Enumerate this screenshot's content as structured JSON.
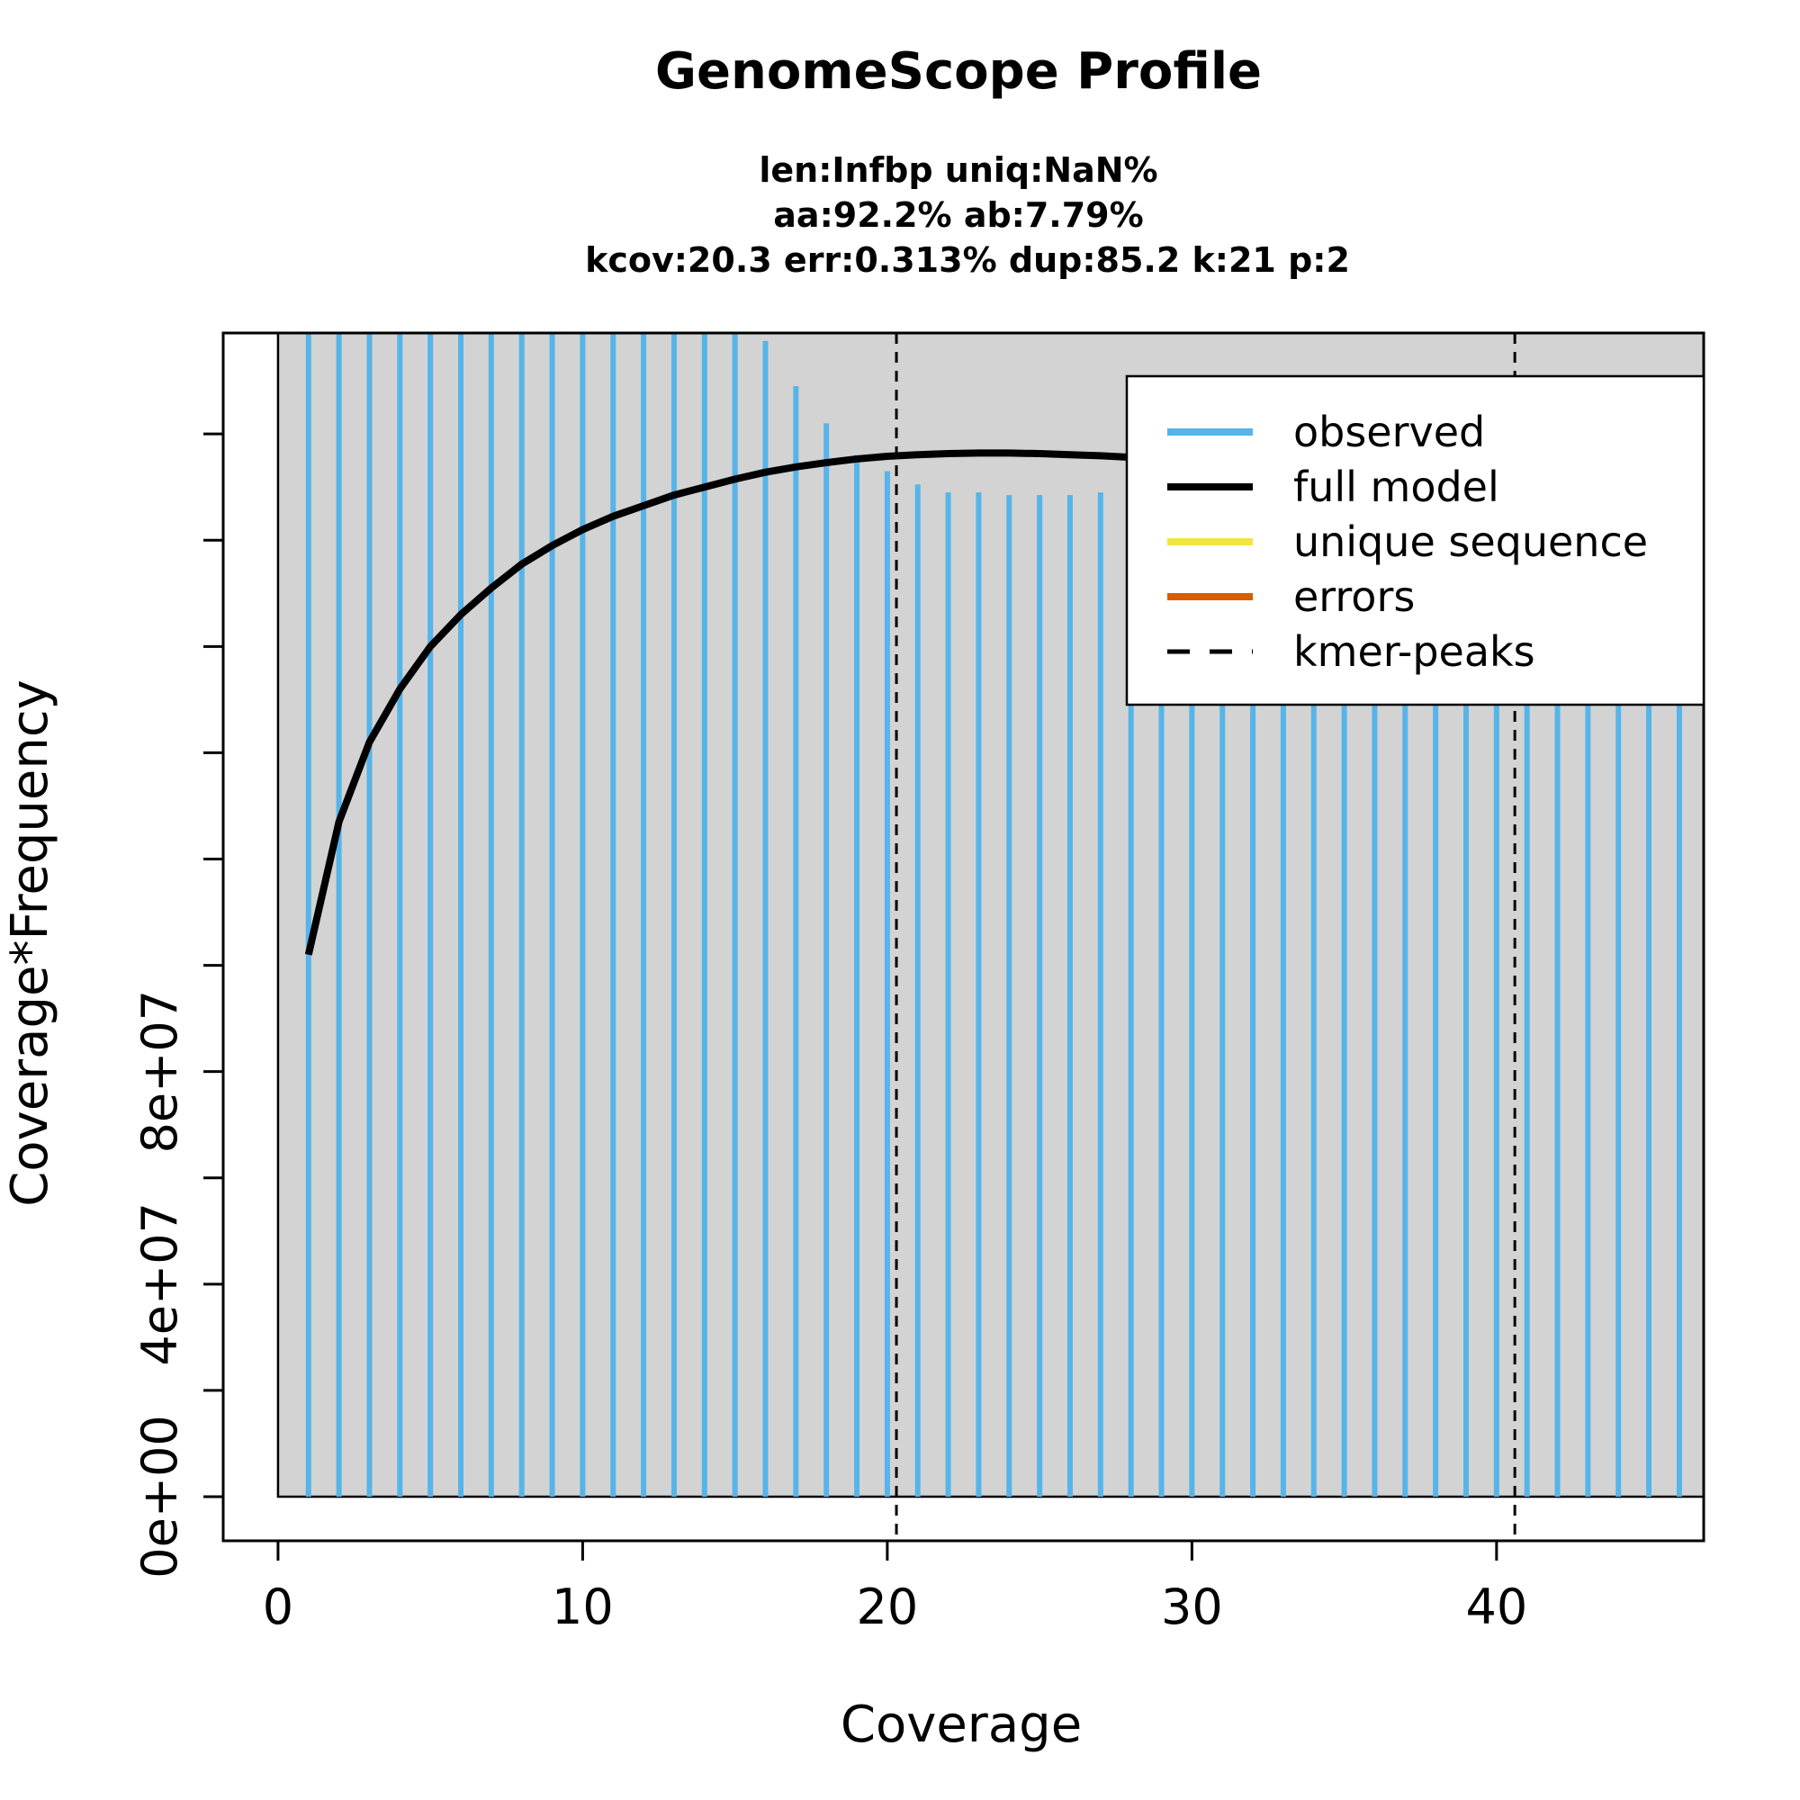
{
  "chart_data": {
    "type": "bar",
    "title": "GenomeScope Profile",
    "subtitle_lines": [
      "len:Infbp uniq:NaN%",
      "aa:92.2% ab:7.79%",
      "kcov:20.3 err:0.313%  dup:85.2  k:21 p:2"
    ],
    "xlabel": "Coverage",
    "ylabel": "Coverage*Frequency",
    "xlim": [
      -1.8,
      46.8
    ],
    "ylim": [
      -8300000,
      219000000
    ],
    "plot_region_xlim": [
      0,
      46.8
    ],
    "plot_region_ylim": [
      0,
      219000000
    ],
    "x_ticks": [
      0,
      10,
      20,
      30,
      40
    ],
    "x_tick_labels": [
      "0",
      "10",
      "20",
      "30",
      "40"
    ],
    "y_ticks": [
      0,
      20000000,
      40000000,
      60000000,
      80000000,
      100000000,
      120000000,
      140000000,
      160000000,
      180000000,
      200000000
    ],
    "y_tick_labels": [
      "0e+00",
      "",
      "4e+07",
      "",
      "8e+07",
      "",
      "",
      "",
      "",
      "",
      ""
    ],
    "grid": false,
    "legend_position": "top-right",
    "colors": {
      "observed": "#56B4E9",
      "full_model": "#000000",
      "unique_sequence": "#F0E442",
      "errors": "#D55E00",
      "kmer_peaks": "#000000",
      "plot_background": "#D3D3D3"
    },
    "legend": [
      {
        "label": "observed",
        "key": "observed",
        "style": "solid"
      },
      {
        "label": "full model",
        "key": "full_model",
        "style": "solid"
      },
      {
        "label": "unique sequence",
        "key": "unique_sequence",
        "style": "solid"
      },
      {
        "label": "errors",
        "key": "errors",
        "style": "solid"
      },
      {
        "label": "kmer-peaks",
        "key": "kmer_peaks",
        "style": "dashed"
      }
    ],
    "kmer_peaks": [
      20.3,
      40.6
    ],
    "series": [
      {
        "key": "observed",
        "type": "histogram",
        "x": [
          1,
          2,
          3,
          4,
          5,
          6,
          7,
          8,
          9,
          10,
          11,
          12,
          13,
          14,
          15,
          16,
          17,
          18,
          19,
          20,
          21,
          22,
          23,
          24,
          25,
          26,
          27,
          28,
          29,
          30,
          31,
          32,
          33,
          34,
          35,
          36,
          37,
          38,
          39,
          40,
          41,
          42,
          43,
          44,
          45,
          46
        ],
        "values": [
          219000000,
          219000000,
          219000000,
          219000000,
          219000000,
          219000000,
          219000000,
          219000000,
          219000000,
          219000000,
          219000000,
          219000000,
          219000000,
          219000000,
          219000000,
          217500000,
          209000000,
          202000000,
          196000000,
          193000000,
          190500000,
          189000000,
          189000000,
          188500000,
          188500000,
          188500000,
          189000000,
          150000000,
          150000000,
          150000000,
          150000000,
          150000000,
          150000000,
          150000000,
          150000000,
          150000000,
          150000000,
          150000000,
          150000000,
          150000000,
          150000000,
          150000000,
          150000000,
          150000000,
          150000000,
          150000000
        ]
      },
      {
        "key": "full_model",
        "type": "line",
        "x": [
          1,
          2,
          3,
          4,
          5,
          6,
          7,
          8,
          9,
          10,
          11,
          12,
          13,
          14,
          15,
          16,
          17,
          18,
          19,
          20,
          21,
          22,
          23,
          24,
          25,
          26,
          27,
          28
        ],
        "values": [
          102000000,
          127000000,
          142000000,
          152000000,
          160000000,
          166000000,
          171000000,
          175500000,
          179000000,
          182000000,
          184500000,
          186500000,
          188500000,
          190000000,
          191500000,
          192800000,
          193800000,
          194600000,
          195300000,
          195800000,
          196100000,
          196300000,
          196400000,
          196400000,
          196300000,
          196100000,
          195900000,
          195600000
        ]
      }
    ]
  }
}
